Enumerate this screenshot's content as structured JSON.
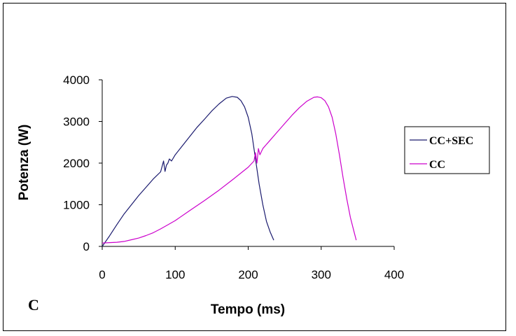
{
  "panel_label": "C",
  "chart_data": {
    "type": "line",
    "title": "",
    "xlabel": "Tempo (ms)",
    "ylabel": "Potenza (W)",
    "xlim": [
      0,
      400
    ],
    "ylim": [
      0,
      4000
    ],
    "xticks": [
      0,
      100,
      200,
      300,
      400
    ],
    "yticks": [
      0,
      1000,
      2000,
      3000,
      4000
    ],
    "grid": false,
    "legend_position": "right",
    "series": [
      {
        "name": "CC+SEC",
        "color": "#1a1a6e",
        "x": [
          0,
          10,
          20,
          30,
          40,
          50,
          60,
          70,
          80,
          84,
          86,
          88,
          90,
          92,
          95,
          100,
          110,
          120,
          130,
          140,
          150,
          160,
          170,
          178,
          185,
          190,
          195,
          200,
          205,
          210,
          215,
          220,
          225,
          230,
          235
        ],
        "y": [
          0,
          250,
          520,
          780,
          1000,
          1220,
          1420,
          1620,
          1790,
          2050,
          1800,
          1950,
          2000,
          2100,
          2050,
          2200,
          2420,
          2640,
          2860,
          3050,
          3250,
          3420,
          3560,
          3600,
          3580,
          3500,
          3350,
          3100,
          2700,
          2100,
          1500,
          1000,
          600,
          350,
          150
        ]
      },
      {
        "name": "CC",
        "color": "#cc00cc",
        "x": [
          0,
          10,
          20,
          30,
          40,
          50,
          60,
          70,
          80,
          90,
          100,
          120,
          140,
          160,
          180,
          200,
          208,
          210,
          212,
          214,
          216,
          220,
          230,
          240,
          250,
          260,
          270,
          280,
          290,
          295,
          300,
          305,
          310,
          315,
          320,
          325,
          330,
          335,
          340,
          345,
          348
        ],
        "y": [
          80,
          90,
          100,
          120,
          160,
          200,
          260,
          330,
          420,
          520,
          620,
          860,
          1100,
          1350,
          1620,
          1900,
          2050,
          2250,
          2000,
          2350,
          2200,
          2350,
          2550,
          2750,
          2950,
          3150,
          3330,
          3480,
          3580,
          3590,
          3570,
          3500,
          3350,
          3100,
          2700,
          2200,
          1650,
          1150,
          700,
          350,
          150
        ]
      }
    ]
  }
}
